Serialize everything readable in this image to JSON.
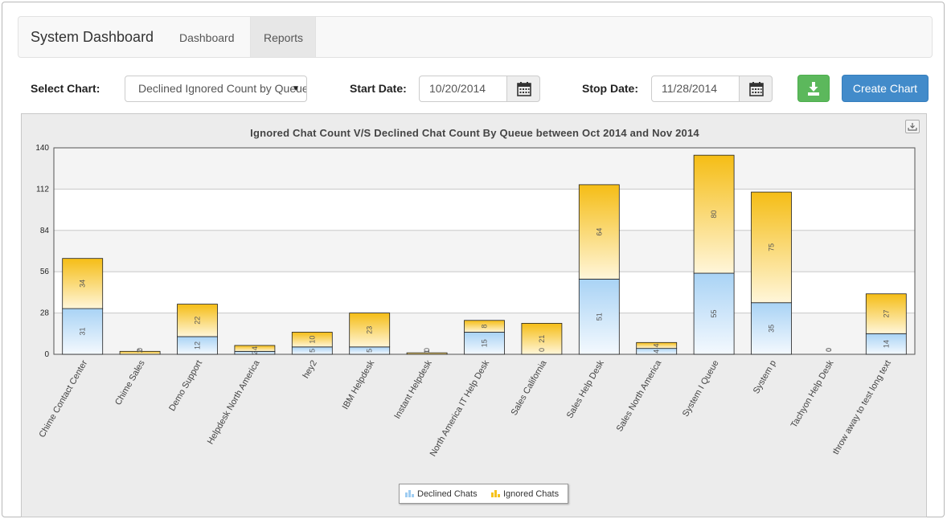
{
  "navbar": {
    "brand": "System Dashboard",
    "tabs": [
      {
        "label": "Dashboard",
        "active": false
      },
      {
        "label": "Reports",
        "active": true
      }
    ]
  },
  "toolbar": {
    "select_chart_label": "Select Chart:",
    "select_chart_value": "Declined Ignored Count by Queue",
    "start_date_label": "Start Date:",
    "start_date_value": "10/20/2014",
    "stop_date_label": "Stop Date:",
    "stop_date_value": "11/28/2014",
    "download_icon": "download-icon",
    "calendar_icon": "calendar-icon",
    "create_button_label": "Create Chart"
  },
  "colors": {
    "declined": "#b9dcf6",
    "ignored": "#f6c21e",
    "primary": "#428bca",
    "success": "#5cb85c"
  },
  "chart_data": {
    "type": "bar",
    "stacked": true,
    "title": "Ignored Chat Count V/S Declined Chat Count By Queue between Oct 2014 and Nov 2014",
    "categories": [
      "Chime Contact Center",
      "Chime Sales",
      "Demo Support",
      "Helpdesk North America",
      "hey2",
      "IBM Helpdesk",
      "Instant Helpdesk",
      "North America IT Help Desk",
      "Sales California",
      "Sales Help Desk",
      "Sales North America",
      "System I Queue",
      "System p",
      "Tachyon Help Desk",
      "throw away to test long text"
    ],
    "series": [
      {
        "name": "Declined Chats",
        "values": [
          31,
          0,
          12,
          2,
          5,
          5,
          0,
          15,
          0,
          51,
          4,
          55,
          35,
          0,
          14
        ],
        "labels": [
          "31",
          "0",
          "12",
          "2",
          "5",
          "5",
          "0",
          "15",
          "0",
          "51",
          "4",
          "55",
          "35",
          "0",
          "14"
        ]
      },
      {
        "name": "Ignored Chats",
        "values": [
          34,
          2,
          22,
          4,
          10,
          23,
          1,
          8,
          21,
          64,
          4,
          80,
          75,
          0,
          27
        ],
        "labels": [
          "34",
          "2",
          "22",
          "4",
          "10",
          "23",
          "1",
          "8",
          "21",
          "64",
          "4",
          "80",
          "75",
          "0",
          "27"
        ]
      }
    ],
    "yticks": [
      "0",
      "28",
      "56",
      "84",
      "112",
      "140"
    ],
    "ylim": [
      0,
      140
    ],
    "grid": true,
    "legend": "bottom-center"
  }
}
